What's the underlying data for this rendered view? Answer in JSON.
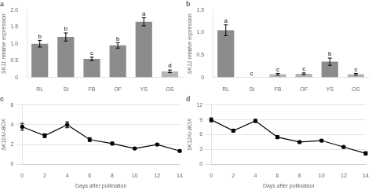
{
  "chart_data": [
    {
      "type": "bar",
      "title": "a",
      "categories": [
        "RL",
        "St",
        "FB",
        "OF",
        "YS",
        "OS"
      ],
      "values": [
        1.0,
        1.2,
        0.55,
        0.95,
        1.65,
        0.18
      ],
      "errors": [
        0.1,
        0.12,
        0.05,
        0.08,
        0.12,
        0.04
      ],
      "annotations": [
        "b",
        "b",
        "c",
        "b",
        "a",
        "d"
      ],
      "colors": [
        "#8c8c8c",
        "#8c8c8c",
        "#8c8c8c",
        "#8c8c8c",
        "#8c8c8c",
        "#b5b5b5"
      ],
      "ylabel": "SK11 relative expression",
      "ylim": [
        0,
        2.0
      ],
      "yticks": [
        0,
        0.5,
        {
          "value": 1.0,
          "label": "1.0"
        },
        1.5,
        {
          "value": 2.0,
          "label": "2.0"
        }
      ],
      "grid": false
    },
    {
      "type": "bar",
      "title": "b",
      "categories": [
        "RL",
        "St",
        "FB",
        "OF",
        "YS",
        "OS"
      ],
      "values": [
        1.05,
        0.0,
        0.07,
        0.08,
        0.35,
        0.07
      ],
      "errors": [
        0.12,
        0.0,
        0.02,
        0.02,
        0.08,
        0.02
      ],
      "annotations": [
        "a",
        "c",
        "c",
        "c",
        "b",
        "c"
      ],
      "colors": [
        "#8c8c8c",
        "#b5b5b5",
        "#b5b5b5",
        "#b5b5b5",
        "#8c8c8c",
        "#b5b5b5"
      ],
      "ylabel": "SK12 relative expression",
      "ylim": [
        0,
        1.5
      ],
      "yticks": [
        0,
        0.5,
        {
          "value": 1.0,
          "label": "1.0"
        },
        1.5
      ],
      "grid": false
    },
    {
      "type": "line",
      "title": "c",
      "x": [
        0,
        2,
        4,
        6,
        8,
        10,
        12,
        14
      ],
      "values": [
        3.8,
        2.9,
        4.0,
        2.5,
        2.1,
        1.6,
        2.0,
        1.35
      ],
      "errors": [
        0.35,
        0.2,
        0.3,
        0.2,
        0.15,
        0.1,
        0.1,
        0.1
      ],
      "color": "#000000",
      "marker": "circle",
      "line_style": "solid",
      "ylabel": "SK11/U-BOX",
      "xlabel": "Days after pollination",
      "xlim": [
        0,
        14
      ],
      "xticks": [
        0,
        2,
        4,
        6,
        8,
        10,
        12,
        14
      ],
      "ylim": [
        0,
        6
      ],
      "yticks": [
        0,
        2,
        4,
        6
      ],
      "grid": true
    },
    {
      "type": "line",
      "title": "d",
      "x": [
        0,
        2,
        4,
        6,
        8,
        10,
        12,
        14
      ],
      "values": [
        9.0,
        6.8,
        8.8,
        5.5,
        4.5,
        4.8,
        3.5,
        2.2
      ],
      "errors": [
        0.4,
        0.3,
        0.3,
        0.3,
        0.15,
        0.25,
        0.2,
        0.35
      ],
      "color": "#000000",
      "marker": "circle",
      "line_style": "solid",
      "ylabel": "SK12/U-BOX",
      "xlabel": "Days after pollination",
      "xlim": [
        0,
        14
      ],
      "xticks": [
        0,
        2,
        4,
        6,
        8,
        10,
        12,
        14
      ],
      "ylim": [
        0,
        12
      ],
      "yticks": [
        0,
        3,
        6,
        9,
        12
      ],
      "grid": true
    }
  ]
}
